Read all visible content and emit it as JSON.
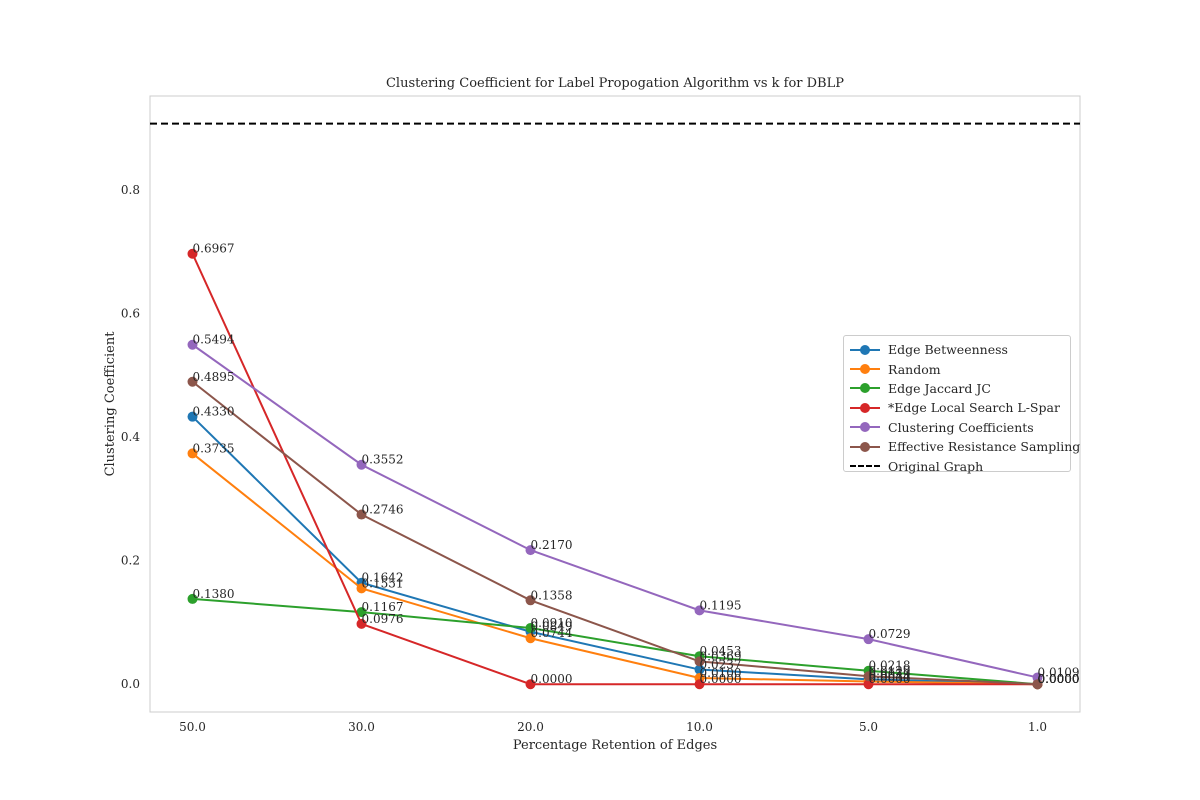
{
  "chart_data": {
    "type": "line",
    "title": "Clustering Coefficient for Label Propogation Algorithm vs k for DBLP",
    "xlabel": "Percentage Retention of Edges",
    "ylabel": "Clustering Coefficient",
    "categories": [
      "50.0",
      "30.0",
      "20.0",
      "10.0",
      "5.0",
      "1.0"
    ],
    "ylim": [
      -0.045,
      0.952
    ],
    "yticks": [
      "0.0",
      "0.2",
      "0.4",
      "0.6",
      "0.8"
    ],
    "ytick_values": [
      0.0,
      0.2,
      0.4,
      0.6,
      0.8
    ],
    "grid": false,
    "legend_position": "center-right",
    "reference_line": {
      "name": "Original Graph",
      "value": 0.9072,
      "style": "dashed",
      "color": "#000000"
    },
    "series": [
      {
        "name": "Edge Betweenness",
        "color": "#1f77b4",
        "values": [
          0.433,
          0.1642,
          0.0849,
          0.0237,
          0.0079,
          0.0
        ],
        "labels": [
          "0.4330",
          "0.1642",
          "0.0849",
          "0.0237",
          "0.0079",
          "0.0000"
        ]
      },
      {
        "name": "Random",
        "color": "#ff7f0e",
        "values": [
          0.3735,
          0.1551,
          0.0744,
          0.01,
          0.0044,
          0.0
        ],
        "labels": [
          "0.3735",
          "0.1551",
          "0.0744",
          "0.0100",
          "0.0044",
          "0.0000"
        ]
      },
      {
        "name": "Edge Jaccard JC",
        "color": "#2ca02c",
        "values": [
          0.138,
          0.1167,
          0.091,
          0.0453,
          0.0218,
          0.0
        ],
        "labels": [
          "0.1380",
          "0.1167",
          "0.0910",
          "0.0453",
          "0.0218",
          "0.0000"
        ]
      },
      {
        "name": "*Edge Local Search L-Spar",
        "color": "#d62728",
        "values": [
          0.6967,
          0.0976,
          0.0,
          0.0,
          0.0,
          0.0
        ],
        "labels": [
          "0.6967",
          "0.0976",
          "0.0000",
          "0.0000",
          "0.0000",
          "0.0000"
        ]
      },
      {
        "name": "Clustering Coefficients",
        "color": "#9467bd",
        "values": [
          0.5494,
          0.3552,
          0.217,
          0.1195,
          0.0729,
          0.0109
        ],
        "labels": [
          "0.5494",
          "0.3552",
          "0.2170",
          "0.1195",
          "0.0729",
          "0.0109"
        ]
      },
      {
        "name": "Effective Resistance Sampling",
        "color": "#8c564b",
        "values": [
          0.4895,
          0.2746,
          0.1358,
          0.0369,
          0.0129,
          0.0
        ],
        "labels": [
          "0.4895",
          "0.2746",
          "0.1358",
          "0.0369",
          "0.0129",
          "0.0000"
        ]
      }
    ]
  }
}
